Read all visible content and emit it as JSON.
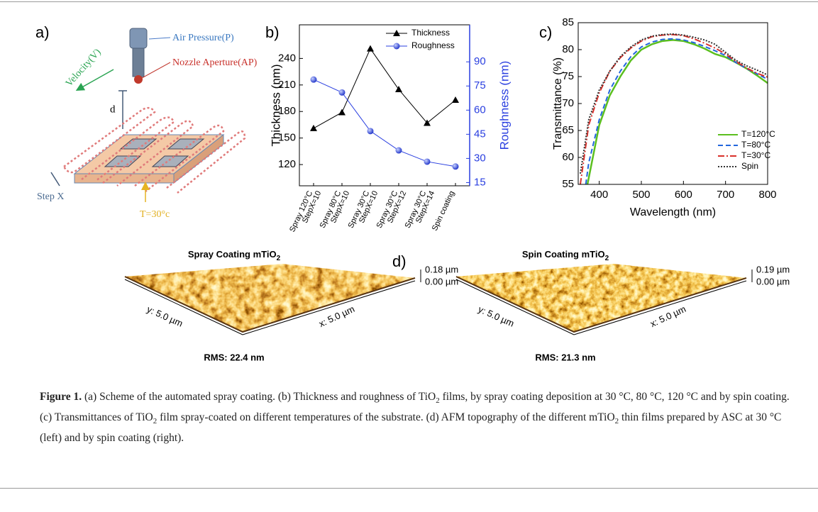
{
  "panel_a": {
    "label": "a)",
    "air_pressure": "Air Pressure(P)",
    "nozzle": "Nozzle Aperture(AP)",
    "velocity": "Velocity(V)",
    "d": "d",
    "step": "Step X",
    "temp": "T=30°c"
  },
  "chart_data": [
    {
      "type": "line",
      "label": "b)",
      "categories": [
        [
          "Spray 120°C",
          "StepX=10"
        ],
        [
          "Spray 80°C",
          "StepX=10"
        ],
        [
          "Spray 30°C",
          "StepX=10"
        ],
        [
          "Spray 30°C",
          "StepX=12"
        ],
        [
          "Spray 30°C",
          "StepX=14"
        ],
        [
          "Spin coating"
        ]
      ],
      "y_label": "Thickness (nm)",
      "y2_label": "Roughness (nm)",
      "ylim": [
        96,
        278
      ],
      "yticks": [
        120,
        150,
        180,
        210,
        240
      ],
      "y2lim": [
        13,
        113
      ],
      "y2ticks": [
        15,
        30,
        45,
        60,
        75,
        90
      ],
      "legend": "top-right",
      "series": [
        {
          "name": "Thickness",
          "color": "#000000",
          "marker": "triangle",
          "values": [
            161,
            179,
            251,
            205,
            167,
            193
          ]
        },
        {
          "name": "Roughness",
          "color": "#2a3fe0",
          "marker": "circle",
          "axis": "y2",
          "values": [
            79,
            71,
            47,
            35,
            28,
            25
          ]
        }
      ]
    },
    {
      "type": "line",
      "label": "c)",
      "x_label": "Wavelength (nm)",
      "y_label": "Transmittance (%)",
      "xlim": [
        350,
        800
      ],
      "xticks": [
        400,
        500,
        600,
        700,
        800
      ],
      "ylim": [
        55,
        85
      ],
      "yticks": [
        55,
        60,
        65,
        70,
        75,
        80,
        85
      ],
      "legend": "bottom-right",
      "series": [
        {
          "name": "T=120°C",
          "color": "#5bbf1f",
          "style": "solid",
          "x": [
            372,
            400,
            425,
            450,
            475,
            500,
            525,
            550,
            575,
            600,
            625,
            650,
            675,
            700,
            725,
            750,
            775,
            800
          ],
          "values": [
            55,
            66,
            71.5,
            75,
            78,
            80,
            81,
            81.6,
            81.8,
            81.6,
            81,
            80.2,
            79.2,
            78.6,
            77.6,
            76.5,
            75.2,
            73.8
          ]
        },
        {
          "name": "T=80°C",
          "color": "#2266dd",
          "style": "dashed",
          "x": [
            368,
            375,
            400,
            425,
            450,
            475,
            500,
            525,
            550,
            575,
            600,
            625,
            650,
            675,
            700,
            725,
            750,
            775,
            800
          ],
          "values": [
            55,
            59,
            67,
            72.5,
            76,
            78.7,
            80.5,
            81.4,
            81.9,
            82,
            81.8,
            81.3,
            80.6,
            79.8,
            78.9,
            77.6,
            76.5,
            75.5,
            74.5
          ]
        },
        {
          "name": "T=30°C",
          "color": "#d9302a",
          "style": "dashdot",
          "x": [
            355,
            375,
            400,
            425,
            450,
            475,
            500,
            525,
            550,
            575,
            600,
            625,
            650,
            675,
            700,
            725,
            750,
            775,
            800
          ],
          "values": [
            55,
            66,
            72,
            76,
            78.5,
            80.3,
            81.6,
            82.4,
            82.7,
            82.8,
            82.6,
            82,
            81.2,
            80.3,
            79.2,
            77.8,
            76.6,
            75.6,
            74.9
          ]
        },
        {
          "name": "Spin",
          "color": "#333333",
          "style": "dotted",
          "x": [
            355,
            375,
            400,
            425,
            450,
            475,
            500,
            525,
            550,
            575,
            600,
            625,
            650,
            675,
            700,
            725,
            750,
            775,
            800
          ],
          "values": [
            57,
            67,
            72.5,
            76,
            78.7,
            80.5,
            81.8,
            82.5,
            82.8,
            82.9,
            82.7,
            82.3,
            81.8,
            81,
            79.5,
            78,
            77,
            76.2,
            75.3
          ]
        }
      ]
    }
  ],
  "panel_d": {
    "label": "d)",
    "images": [
      {
        "title": "Spray Coating mTiO",
        "title_sub": "2",
        "z_max": "0.18 µm",
        "z_min": "0.00 µm",
        "y_axis": "y: 5.0 µm",
        "x_axis": "x: 5.0 µm",
        "rms": "RMS: 22.4 nm"
      },
      {
        "title": "Spin Coating mTiO",
        "title_sub": "2",
        "z_max": "0.19 µm",
        "z_min": "0.00 µm",
        "y_axis": "y: 5.0 µm",
        "x_axis": "x: 5.0 µm",
        "rms": "RMS: 21.3 nm"
      }
    ]
  },
  "caption": {
    "label": "Figure 1.",
    "segments": [
      {
        "text": "  (a) Scheme of the automated spray coating. (b) Thickness and roughness of TiO"
      },
      {
        "sub": "2"
      },
      {
        "text": " films, by spray coating deposition at 30 °C, 80 °C, 120 °C and by spin coating. (c) Transmittances of TiO"
      },
      {
        "sub": "2"
      },
      {
        "text": " film spray-coated on different temperatures of the substrate. (d) AFM topography of the different mTiO"
      },
      {
        "sub": "2"
      },
      {
        "text": " thin films prepared by ASC at 30 °C (left) and by spin coating (right)."
      }
    ]
  }
}
